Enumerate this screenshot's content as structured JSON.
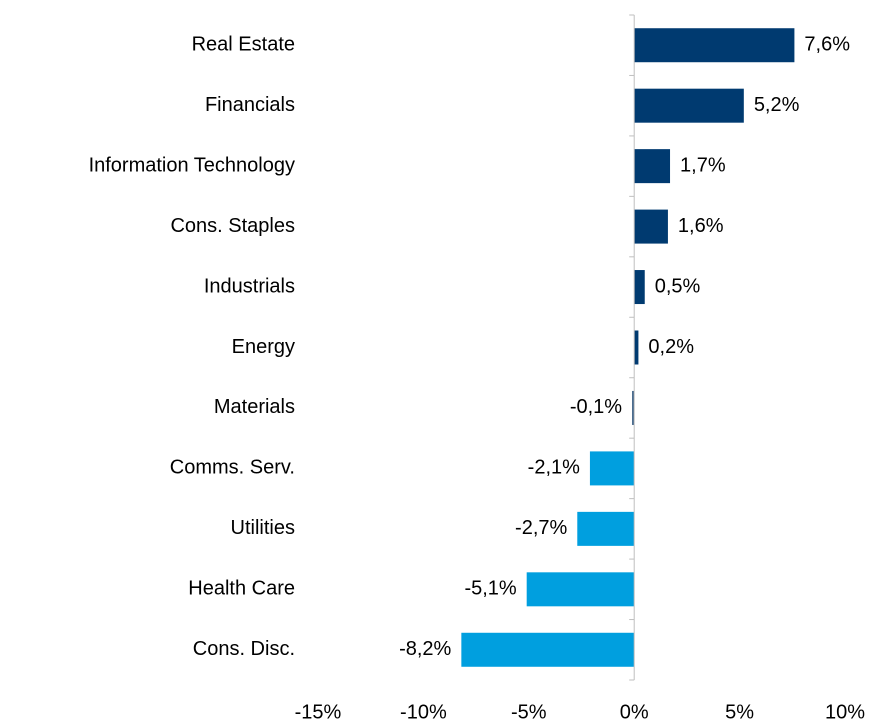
{
  "chart_data": {
    "type": "hbar",
    "categories": [
      "Real Estate",
      "Financials",
      "Information Technology",
      "Cons. Staples",
      "Industrials",
      "Energy",
      "Materials",
      "Comms. Serv.",
      "Utilities",
      "Health Care",
      "Cons. Disc."
    ],
    "values": [
      7.6,
      5.2,
      1.7,
      1.6,
      0.5,
      0.2,
      -0.1,
      -2.1,
      -2.7,
      -5.1,
      -8.2
    ],
    "value_labels": [
      "7,6%",
      "5,2%",
      "1,7%",
      "1,6%",
      "0,5%",
      "0,2%",
      "-0,1%",
      "-2,1%",
      "-2,7%",
      "-5,1%",
      "-8,2%"
    ],
    "colors": [
      "#003a70",
      "#003a70",
      "#003a70",
      "#003a70",
      "#003a70",
      "#003a70",
      "#3a5f84",
      "#009fdf",
      "#009fdf",
      "#009fdf",
      "#009fdf"
    ],
    "xlim": [
      -15,
      10
    ],
    "xticks": [
      {
        "value": -15,
        "label": "-15%"
      },
      {
        "value": -10,
        "label": "-10%"
      },
      {
        "value": -5,
        "label": "-5%"
      },
      {
        "value": 0,
        "label": "0%"
      },
      {
        "value": 5,
        "label": "5%"
      },
      {
        "value": 10,
        "label": "10%"
      }
    ],
    "grid": false
  }
}
